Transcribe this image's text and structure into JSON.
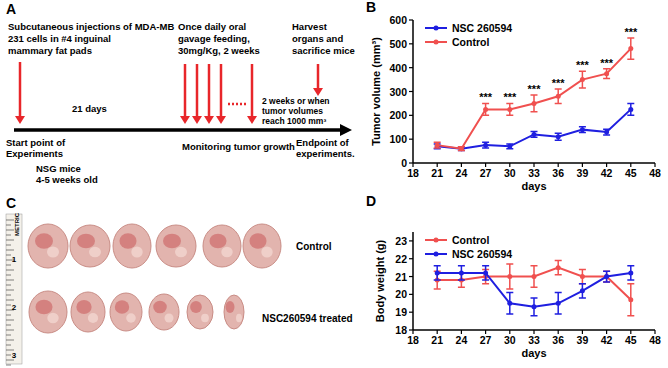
{
  "panel_labels": [
    "A",
    "B",
    "C",
    "D"
  ],
  "diagram": {
    "start_note": [
      "Subcutaneous injections  of  MDA-MB",
      "231 cells in #4 inguinal",
      "mammary fat pads"
    ],
    "treatment_note": [
      "Once daily oral",
      "gavage feeding,",
      "30mg/Kg, 2 weeks"
    ],
    "harvest_note": [
      "Harvest",
      "organs and",
      "sacrifice mice"
    ],
    "interval_label": "21 days",
    "end_condition": [
      "2 weeks or when",
      "tumor volumes",
      "reach 1000 mm³"
    ],
    "start_label": [
      "Start point of",
      "Experiments"
    ],
    "mice_label": [
      "NSG mice",
      "4-5 weeks old"
    ],
    "monitoring_note": "Monitoring tumor growth",
    "end_label": [
      "Endpoint of",
      "experiments."
    ]
  },
  "photo": {
    "ruler_label": "METRIC",
    "ruler_ticks": [
      1,
      2,
      3
    ],
    "row_labels": [
      "Control",
      "NSC260594 treated"
    ]
  },
  "chart_data": [
    {
      "type": "line",
      "x_label": "days",
      "y_label": "Tumor volume (mm³)",
      "x": [
        21,
        24,
        27,
        30,
        33,
        36,
        39,
        42,
        45
      ],
      "xlim": [
        18,
        48
      ],
      "xticks": [
        18,
        21,
        24,
        27,
        30,
        33,
        36,
        39,
        42,
        45,
        48
      ],
      "ylim": [
        0,
        600
      ],
      "yticks": [
        0,
        100,
        200,
        300,
        400,
        500,
        600
      ],
      "legend": "upper left",
      "series": [
        {
          "name": "NSC 260594",
          "color": "#1f1fe0",
          "marker": "circle",
          "values": [
            70,
            60,
            75,
            70,
            120,
            110,
            140,
            130,
            225
          ],
          "errors": [
            10,
            8,
            12,
            10,
            12,
            15,
            12,
            12,
            25
          ]
        },
        {
          "name": "Control",
          "color": "#f0504f",
          "marker": "circle",
          "values": [
            75,
            60,
            225,
            225,
            250,
            280,
            350,
            375,
            480
          ],
          "errors": [
            12,
            8,
            25,
            25,
            35,
            30,
            35,
            20,
            45
          ]
        }
      ],
      "annotations": [
        {
          "x": 27,
          "text": "***"
        },
        {
          "x": 30,
          "text": "***"
        },
        {
          "x": 33,
          "text": "***"
        },
        {
          "x": 36,
          "text": "***"
        },
        {
          "x": 39,
          "text": "***"
        },
        {
          "x": 42,
          "text": "***"
        },
        {
          "x": 45,
          "text": "***"
        }
      ]
    },
    {
      "type": "line",
      "x_label": "days",
      "y_label": "Body weight (g)",
      "x": [
        21,
        24,
        27,
        30,
        33,
        36,
        39,
        42,
        45
      ],
      "xlim": [
        18,
        48
      ],
      "xticks": [
        18,
        21,
        24,
        27,
        30,
        33,
        36,
        39,
        42,
        45,
        48
      ],
      "ylim": [
        18,
        23.5
      ],
      "yticks": [
        18,
        19,
        20,
        21,
        22,
        23
      ],
      "legend": "upper left",
      "series": [
        {
          "name": "Control",
          "color": "#f0504f",
          "marker": "circle",
          "values": [
            20.8,
            20.8,
            21,
            21,
            21,
            21.5,
            21,
            21,
            19.7
          ],
          "errors": [
            0.5,
            0.4,
            0.4,
            0.7,
            0.6,
            0.4,
            0.4,
            0.3,
            0.9
          ]
        },
        {
          "name": "NSC 260594",
          "color": "#1f1fe0",
          "marker": "circle",
          "values": [
            21.2,
            21.2,
            21.2,
            19.5,
            19.3,
            19.5,
            20.2,
            21,
            21.2
          ],
          "errors": [
            0.4,
            0.4,
            0.4,
            0.6,
            0.5,
            0.6,
            0.4,
            0.3,
            0.4
          ]
        }
      ]
    }
  ]
}
